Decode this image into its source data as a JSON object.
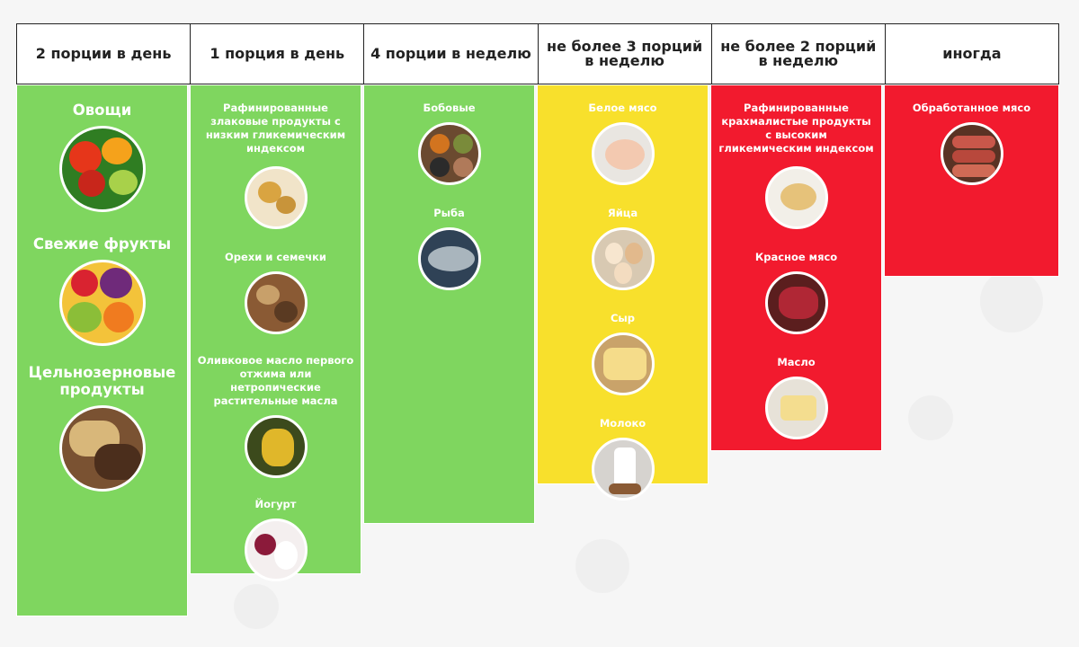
{
  "headers": [
    "2 порции в день",
    "1 порция в день",
    "4 порции в неделю",
    "не более 3 порций в неделю",
    "не более 2 порций в неделю",
    "иногда"
  ],
  "columns": [
    {
      "color": "#7fd65f",
      "items": [
        {
          "label": "Овощи",
          "icon": "vegetables-icon"
        },
        {
          "label": "Свежие фрукты",
          "icon": "fruits-icon"
        },
        {
          "label": "Цельнозерновые продукты",
          "icon": "whole-grain-bread-icon"
        }
      ]
    },
    {
      "color": "#7fd65f",
      "items": [
        {
          "label": "Рафинированные злаковые продукты с низким гликемическим индексом",
          "icon": "pasta-icon"
        },
        {
          "label": "Орехи и семечки",
          "icon": "nuts-seeds-icon"
        },
        {
          "label": "Оливковое масло первого отжима или нетропические растительные масла",
          "icon": "olive-oil-icon"
        },
        {
          "label": "Йогурт",
          "icon": "yogurt-icon"
        }
      ]
    },
    {
      "color": "#7fd65f",
      "items": [
        {
          "label": "Бобовые",
          "icon": "legumes-icon"
        },
        {
          "label": "Рыба",
          "icon": "fish-icon"
        }
      ]
    },
    {
      "color": "#f8e02c",
      "items": [
        {
          "label": "Белое мясо",
          "icon": "chicken-icon"
        },
        {
          "label": "Яйца",
          "icon": "eggs-icon"
        },
        {
          "label": "Сыр",
          "icon": "cheese-icon"
        },
        {
          "label": "Молоко",
          "icon": "milk-icon"
        }
      ]
    },
    {
      "color": "#f21a2e",
      "items": [
        {
          "label": "Рафинированные крахмалистые продукты с высоким гликемическим индексом",
          "icon": "white-bread-icon"
        },
        {
          "label": "Красное мясо",
          "icon": "red-meat-icon"
        },
        {
          "label": "Масло",
          "icon": "butter-icon"
        }
      ]
    },
    {
      "color": "#f21a2e",
      "items": [
        {
          "label": "Обработанное мясо",
          "icon": "sausages-icon"
        }
      ]
    }
  ]
}
